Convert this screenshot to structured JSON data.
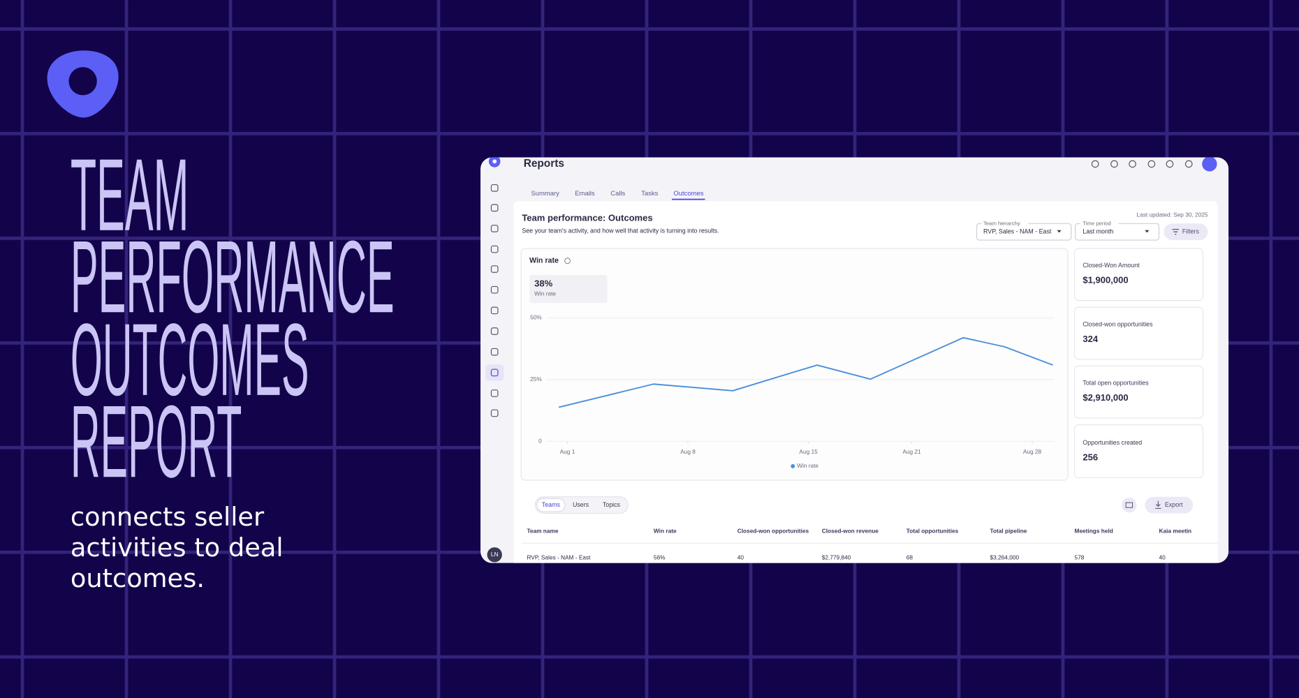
{
  "headline_lines": [
    "TEAM",
    "PERFORMANCE",
    "OUTCOMES",
    "REPORT"
  ],
  "subtitle_lines": [
    "connects seller",
    "activities to deal",
    "outcomes."
  ],
  "app": {
    "page_title": "Reports",
    "tabs": [
      "Summary",
      "Emails",
      "Calls",
      "Tasks",
      "Outcomes"
    ],
    "avatar": "LN"
  },
  "report": {
    "title": "Team performance: Outcomes",
    "description": "See your team's activity, and how well that activity is turning into results.",
    "last_updated": "Last updated: Sep 30, 2025",
    "filters": [
      {
        "label": "Team hierarchy",
        "value": "RVP, Sales - NAM - East"
      },
      {
        "label": "Time period",
        "value": "Last month"
      }
    ],
    "filters_button": "Filters"
  },
  "kpis": [
    {
      "label": "Closed-Won Amount",
      "value": "$1,900,000"
    },
    {
      "label": "Closed-won opportunities",
      "value": "324"
    },
    {
      "label": "Total open opportunities",
      "value": "$2,910,000"
    },
    {
      "label": "Opportunities created",
      "value": "256"
    }
  ],
  "table": {
    "tabs": [
      "Teams",
      "Users",
      "Topics"
    ],
    "export": "Export",
    "columns": [
      "Team name",
      "Win rate",
      "Closed-won opportunities",
      "Closed-won revenue",
      "Total opportunities",
      "Total pipeline",
      "Meetings held",
      "Kaia meetin"
    ],
    "rows": [
      [
        "RVP, Sales - NAM - East",
        "56%",
        "40",
        "$2,779,840",
        "68",
        "$3,264,000",
        "578",
        "40"
      ]
    ]
  },
  "chart_data": {
    "type": "line",
    "title": "Win rate",
    "kpi": {
      "value": "38%",
      "label": "Win rate"
    },
    "x": [
      0.5,
      6,
      10.6,
      15.5,
      18.6,
      24,
      26.4,
      29.2
    ],
    "xlim": [
      -0.2,
      29.3
    ],
    "xticks": [
      {
        "value": 1,
        "label": "Aug 1"
      },
      {
        "value": 8,
        "label": "Aug 8"
      },
      {
        "value": 15,
        "label": "Aug 15"
      },
      {
        "value": 21,
        "label": "Aug 21"
      },
      {
        "value": 28,
        "label": "Aug 28"
      }
    ],
    "ylim": [
      0,
      50
    ],
    "yticks": [
      0,
      {
        "value": 25,
        "label": "25%"
      },
      {
        "value": 50,
        "label": "50%"
      }
    ],
    "grid": true,
    "series": [
      {
        "name": "Win rate",
        "color": "#4a90d9",
        "values": [
          13.8,
          23.2,
          20.5,
          30.9,
          25.2,
          42,
          38.3,
          30.9
        ]
      }
    ]
  }
}
